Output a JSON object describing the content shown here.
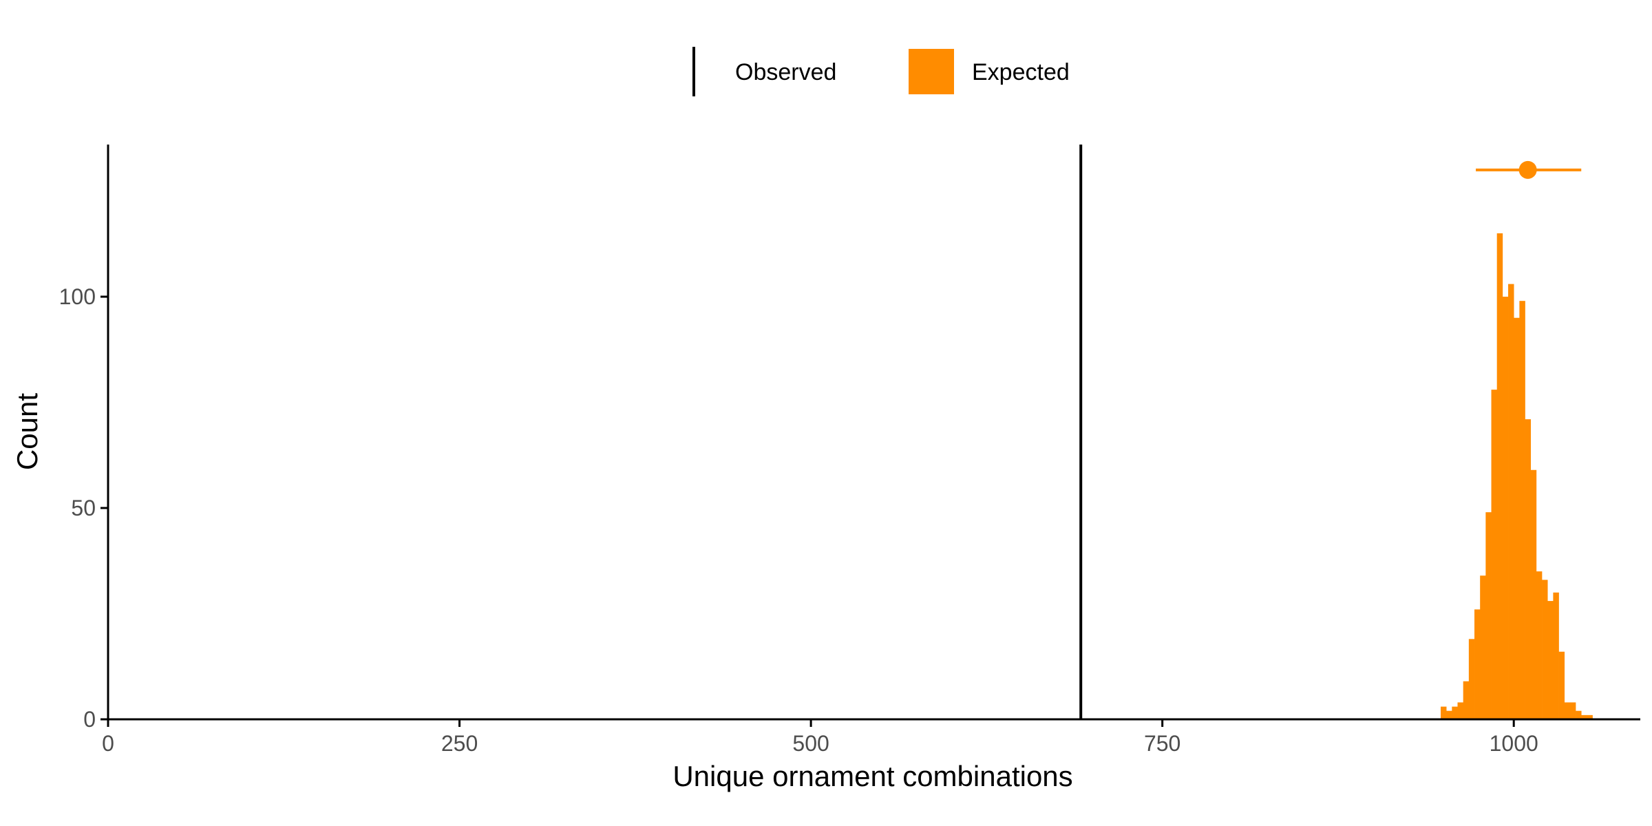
{
  "chart_data": {
    "type": "bar",
    "xlabel": "Unique ornament combinations",
    "ylabel": "Count",
    "xlim": [
      0,
      1090
    ],
    "ylim": [
      0,
      136
    ],
    "x_ticks": [
      0,
      250,
      500,
      750,
      1000
    ],
    "y_ticks": [
      0,
      50,
      100
    ],
    "grid": false,
    "legend_position": "top",
    "legend": [
      {
        "label": "Observed",
        "key": "line",
        "color": "#000000"
      },
      {
        "label": "Expected",
        "key": "fill",
        "color": "#FF8C00"
      }
    ],
    "observed_value": 692,
    "expected_summary": {
      "point": 1010,
      "low": 973,
      "high": 1048,
      "y": 130
    },
    "histogram": {
      "bin_width": 4,
      "bins_start": [
        948,
        952,
        956,
        960,
        964,
        968,
        972,
        976,
        980,
        984,
        988,
        992,
        996,
        1000,
        1004,
        1008,
        1012,
        1016,
        1020,
        1024,
        1028,
        1032,
        1036,
        1040,
        1044,
        1048,
        1052,
        1056,
        1060,
        1064,
        1068,
        1072
      ],
      "counts": [
        3,
        2,
        3,
        4,
        9,
        19,
        26,
        34,
        49,
        78,
        115,
        100,
        103,
        95,
        99,
        71,
        59,
        35,
        33,
        28,
        30,
        16,
        4,
        4,
        2,
        1,
        1,
        0,
        0,
        0,
        0,
        0
      ]
    },
    "colors": {
      "observed": "#000000",
      "expected": "#FF8C00",
      "axis": "#000000",
      "tick_label": "#4D4D4D"
    }
  }
}
